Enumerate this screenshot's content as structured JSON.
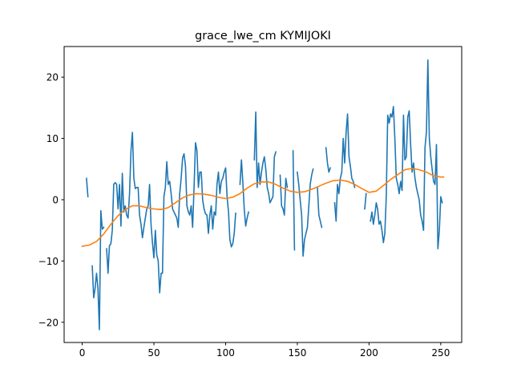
{
  "chart_data": {
    "type": "line",
    "title": "grace_lwe_cm KYMIJOKI",
    "xlabel": "",
    "ylabel": "",
    "xlim": [
      -12.6,
      264.6
    ],
    "ylim": [
      -23.3,
      25.0
    ],
    "xticks": [
      0,
      50,
      100,
      150,
      200,
      250
    ],
    "yticks": [
      -20,
      -10,
      0,
      10,
      20
    ],
    "grid": false,
    "legend": "none",
    "colors": {
      "observed": "#1f77b4",
      "fitted": "#ff7f0e"
    },
    "series": [
      {
        "color": "#1f77b4",
        "points": [
          [
            3,
            3.5
          ],
          [
            4,
            0.5
          ],
          [
            5,
            null
          ],
          [
            7,
            -10.8
          ],
          [
            8,
            -16.0
          ],
          [
            9,
            -14.5
          ],
          [
            10,
            -12.0
          ],
          [
            11,
            -14.5
          ],
          [
            12,
            -21.2
          ],
          [
            13,
            -1.8
          ],
          [
            14,
            -4.8
          ],
          [
            15,
            -4.5
          ],
          [
            16,
            null
          ],
          [
            17,
            -8.0
          ],
          [
            18,
            -12.0
          ],
          [
            19,
            -7.5
          ],
          [
            20,
            -7.2
          ],
          [
            21,
            -5.0
          ],
          [
            22,
            2.5
          ],
          [
            23,
            2.8
          ],
          [
            24,
            2.5
          ],
          [
            25,
            -1.5
          ],
          [
            26,
            2.5
          ],
          [
            27,
            -4.3
          ],
          [
            28,
            4.3
          ],
          [
            29,
            -2.0
          ],
          [
            30,
            -1.0
          ],
          [
            31,
            -2.5
          ],
          [
            32,
            -3.0
          ],
          [
            33,
            1.0
          ],
          [
            34,
            8.0
          ],
          [
            35,
            11.0
          ],
          [
            36,
            3.5
          ],
          [
            37,
            1.8
          ],
          [
            38,
            2.0
          ],
          [
            39,
            2.0
          ],
          [
            40,
            -2.5
          ],
          [
            41,
            -4.0
          ],
          [
            42,
            -6.2
          ],
          [
            43,
            -4.5
          ],
          [
            44,
            -3.0
          ],
          [
            45,
            -1.5
          ],
          [
            46,
            -1.0
          ],
          [
            47,
            2.5
          ],
          [
            48,
            -4.0
          ],
          [
            49,
            -7.0
          ],
          [
            50,
            -9.5
          ],
          [
            51,
            -5.0
          ],
          [
            52,
            -9.0
          ],
          [
            53,
            -10.0
          ],
          [
            54,
            -15.2
          ],
          [
            55,
            -12.0
          ],
          [
            56,
            -12.0
          ],
          [
            57,
            0.5
          ],
          [
            58,
            2.0
          ],
          [
            59,
            6.2
          ],
          [
            60,
            2.5
          ],
          [
            61,
            3.0
          ],
          [
            62,
            1.0
          ],
          [
            63,
            -1.5
          ],
          [
            64,
            -2.0
          ],
          [
            65,
            -2.5
          ],
          [
            66,
            -3.0
          ],
          [
            67,
            -4.5
          ],
          [
            68,
            1.0
          ],
          [
            69,
            3.5
          ],
          [
            70,
            6.8
          ],
          [
            71,
            7.5
          ],
          [
            72,
            5.5
          ],
          [
            73,
            -1.0
          ],
          [
            74,
            -2.0
          ],
          [
            75,
            -2.5
          ],
          [
            76,
            -1.0
          ],
          [
            77,
            -4.5
          ],
          [
            78,
            2.0
          ],
          [
            79,
            9.3
          ],
          [
            80,
            8.0
          ],
          [
            81,
            2.0
          ],
          [
            82,
            4.5
          ],
          [
            83,
            4.5
          ],
          [
            84,
            0.0
          ],
          [
            85,
            -1.5
          ],
          [
            86,
            -2.3
          ],
          [
            87,
            -2.5
          ],
          [
            88,
            -5.5
          ],
          [
            89,
            -2.5
          ],
          [
            90,
            -1.0
          ],
          [
            91,
            -4.8
          ],
          [
            92,
            -2.0
          ],
          [
            93,
            -2.5
          ],
          [
            94,
            2.5
          ],
          [
            95,
            4.5
          ],
          [
            96,
            1.0
          ],
          [
            97,
            3.0
          ],
          [
            98,
            3.5
          ],
          [
            99,
            4.5
          ],
          [
            100,
            5.2
          ],
          [
            101,
            0.5
          ],
          [
            102,
            -2.0
          ],
          [
            103,
            -6.5
          ],
          [
            104,
            -7.7
          ],
          [
            105,
            -7.2
          ],
          [
            106,
            -5.5
          ],
          [
            107,
            -2.2
          ],
          [
            108,
            null
          ],
          [
            110,
            2.5
          ],
          [
            111,
            6.5
          ],
          [
            112,
            3.0
          ],
          [
            113,
            -1.5
          ],
          [
            114,
            -4.3
          ],
          [
            115,
            -3.0
          ],
          [
            116,
            -2.0
          ],
          [
            117,
            null
          ],
          [
            120,
            6.5
          ],
          [
            121,
            14.3
          ],
          [
            122,
            2.0
          ],
          [
            123,
            6.0
          ],
          [
            124,
            2.5
          ],
          [
            125,
            4.5
          ],
          [
            126,
            6.0
          ],
          [
            127,
            7.0
          ],
          [
            128,
            5.0
          ],
          [
            129,
            2.0
          ],
          [
            130,
            1.0
          ],
          [
            131,
            -0.5
          ],
          [
            132,
            0.0
          ],
          [
            133,
            0.5
          ],
          [
            134,
            7.0
          ],
          [
            135,
            7.8
          ],
          [
            136,
            null
          ],
          [
            138,
            4.0
          ],
          [
            139,
            -1.0
          ],
          [
            140,
            -1.5
          ],
          [
            141,
            -2.5
          ],
          [
            142,
            3.5
          ],
          [
            143,
            2.0
          ],
          [
            144,
            null
          ],
          [
            147,
            8.0
          ],
          [
            148,
            -8.2
          ],
          [
            149,
            null
          ],
          [
            150,
            4.5
          ],
          [
            151,
            2.5
          ],
          [
            152,
            0.0
          ],
          [
            153,
            -2.5
          ],
          [
            154,
            -9.2
          ],
          [
            155,
            -6.5
          ],
          [
            156,
            -5.5
          ],
          [
            157,
            -4.5
          ],
          [
            158,
            -1.0
          ],
          [
            159,
            2.5
          ],
          [
            160,
            4.0
          ],
          [
            161,
            5.0
          ],
          [
            162,
            null
          ],
          [
            164,
            2.0
          ],
          [
            165,
            -2.5
          ],
          [
            166,
            -3.5
          ],
          [
            167,
            -4.5
          ],
          [
            168,
            null
          ],
          [
            170,
            8.5
          ],
          [
            171,
            6.0
          ],
          [
            172,
            4.5
          ],
          [
            173,
            5.2
          ],
          [
            174,
            null
          ],
          [
            176,
            -0.5
          ],
          [
            177,
            -3.5
          ],
          [
            178,
            2.5
          ],
          [
            179,
            1.0
          ],
          [
            180,
            3.5
          ],
          [
            181,
            4.5
          ],
          [
            182,
            10.0
          ],
          [
            183,
            6.0
          ],
          [
            184,
            11.0
          ],
          [
            185,
            14.0
          ],
          [
            186,
            7.0
          ],
          [
            187,
            5.5
          ],
          [
            188,
            3.5
          ],
          [
            189,
            3.0
          ],
          [
            190,
            2.0
          ],
          [
            191,
            null
          ],
          [
            197,
            -1.5
          ],
          [
            198,
            1.0
          ],
          [
            199,
            null
          ],
          [
            201,
            -3.5
          ],
          [
            202,
            -2.0
          ],
          [
            203,
            -4.0
          ],
          [
            204,
            -2.5
          ],
          [
            205,
            -0.5
          ],
          [
            206,
            -1.5
          ],
          [
            207,
            -4.0
          ],
          [
            208,
            -3.5
          ],
          [
            209,
            -5.0
          ],
          [
            210,
            -7.0
          ],
          [
            211,
            -5.5
          ],
          [
            212,
            0.5
          ],
          [
            213,
            13.8
          ],
          [
            214,
            12.5
          ],
          [
            215,
            14.0
          ],
          [
            216,
            13.5
          ],
          [
            217,
            15.2
          ],
          [
            218,
            10.0
          ],
          [
            219,
            3.5
          ],
          [
            220,
            2.5
          ],
          [
            221,
            1.0
          ],
          [
            222,
            3.0
          ],
          [
            223,
            1.5
          ],
          [
            224,
            13.8
          ],
          [
            225,
            6.5
          ],
          [
            226,
            7.0
          ],
          [
            227,
            13.5
          ],
          [
            228,
            14.5
          ],
          [
            229,
            9.0
          ],
          [
            230,
            4.5
          ],
          [
            231,
            6.0
          ],
          [
            232,
            3.5
          ],
          [
            233,
            2.0
          ],
          [
            234,
            1.0
          ],
          [
            235,
            0.0
          ],
          [
            236,
            -2.5
          ],
          [
            237,
            -3.5
          ],
          [
            238,
            -5.0
          ],
          [
            239,
            8.5
          ],
          [
            240,
            11.0
          ],
          [
            241,
            22.8
          ],
          [
            242,
            10.0
          ],
          [
            243,
            7.0
          ],
          [
            244,
            5.0
          ],
          [
            245,
            3.0
          ],
          [
            246,
            2.5
          ],
          [
            247,
            9.0
          ],
          [
            248,
            -8.0
          ],
          [
            249,
            -5.0
          ],
          [
            250,
            0.5
          ],
          [
            251,
            -0.5
          ]
        ]
      },
      {
        "color": "#ff7f0e",
        "points": [
          [
            0,
            -7.6
          ],
          [
            5,
            -7.4
          ],
          [
            10,
            -6.8
          ],
          [
            15,
            -5.6
          ],
          [
            20,
            -4.0
          ],
          [
            25,
            -2.6
          ],
          [
            30,
            -1.6
          ],
          [
            35,
            -1.0
          ],
          [
            40,
            -1.0
          ],
          [
            45,
            -1.3
          ],
          [
            50,
            -1.5
          ],
          [
            55,
            -1.6
          ],
          [
            60,
            -1.3
          ],
          [
            65,
            -0.5
          ],
          [
            70,
            0.3
          ],
          [
            75,
            0.8
          ],
          [
            80,
            1.0
          ],
          [
            85,
            0.9
          ],
          [
            90,
            0.7
          ],
          [
            95,
            0.4
          ],
          [
            100,
            0.2
          ],
          [
            105,
            0.4
          ],
          [
            110,
            1.0
          ],
          [
            115,
            1.9
          ],
          [
            120,
            2.6
          ],
          [
            125,
            2.9
          ],
          [
            130,
            2.9
          ],
          [
            135,
            2.5
          ],
          [
            140,
            1.9
          ],
          [
            145,
            1.4
          ],
          [
            150,
            1.2
          ],
          [
            155,
            1.3
          ],
          [
            160,
            1.7
          ],
          [
            165,
            2.2
          ],
          [
            170,
            2.7
          ],
          [
            175,
            3.1
          ],
          [
            180,
            3.2
          ],
          [
            185,
            3.0
          ],
          [
            190,
            2.5
          ],
          [
            195,
            1.8
          ],
          [
            200,
            1.2
          ],
          [
            205,
            1.4
          ],
          [
            210,
            2.3
          ],
          [
            215,
            3.3
          ],
          [
            220,
            4.1
          ],
          [
            225,
            4.9
          ],
          [
            230,
            5.1
          ],
          [
            235,
            4.9
          ],
          [
            240,
            4.5
          ],
          [
            245,
            3.9
          ],
          [
            250,
            3.7
          ],
          [
            252,
            3.7
          ]
        ]
      }
    ]
  }
}
